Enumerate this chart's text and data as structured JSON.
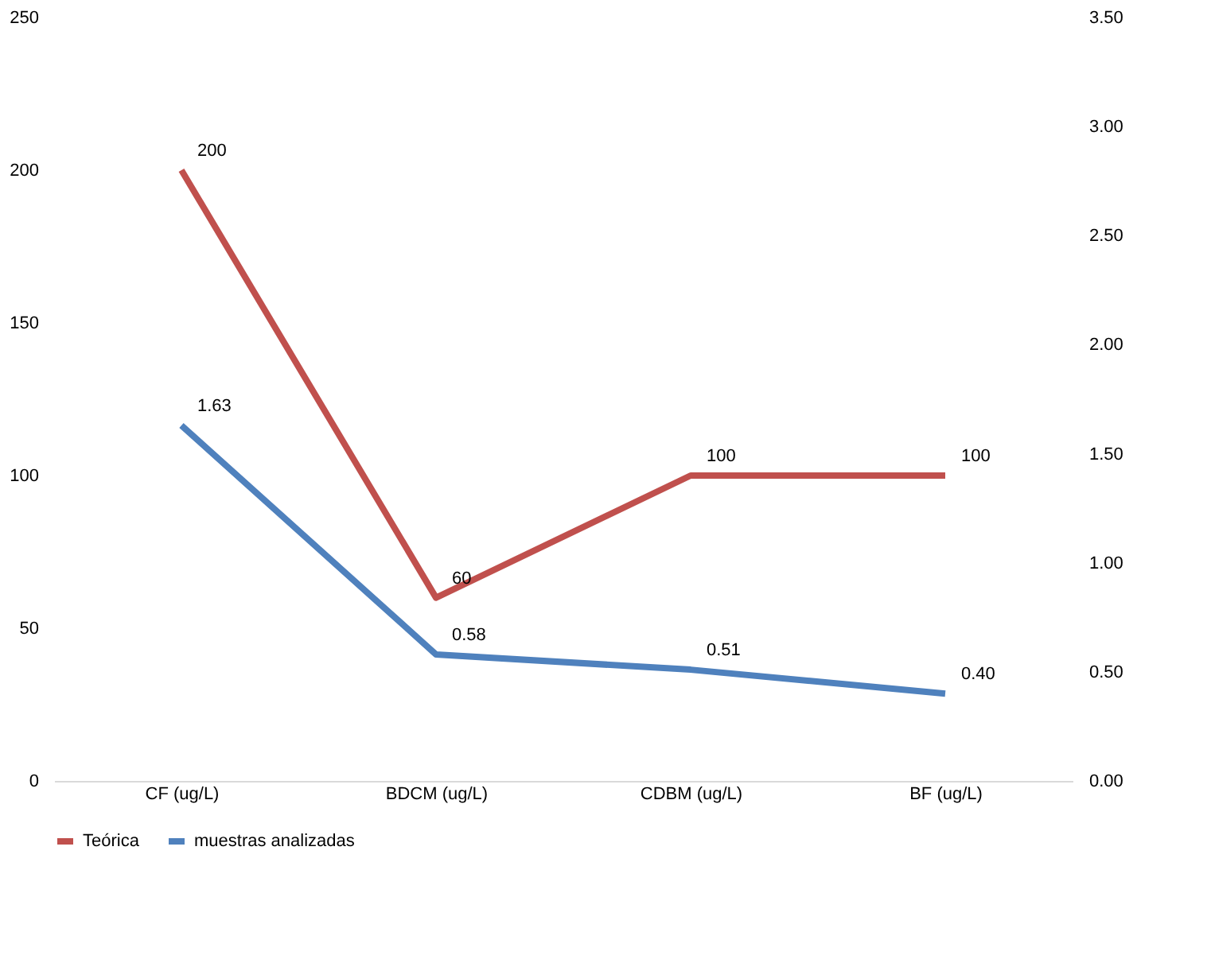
{
  "chart_data": {
    "type": "line",
    "categories": [
      "CF (ug/L)",
      "BDCM  (ug/L)",
      "CDBM  (ug/L)",
      "BF  (ug/L)"
    ],
    "series": [
      {
        "name": "Teórica",
        "color": "#c0504d",
        "values": [
          200,
          60,
          100,
          100
        ],
        "value_labels": [
          "200",
          "60",
          "100",
          "100"
        ]
      },
      {
        "name": "muestras analizadas",
        "color": "#4f81bd",
        "values": [
          1.63,
          0.58,
          0.51,
          0.4
        ],
        "axis": "y2",
        "value_labels": [
          "1.63",
          "0.58",
          "0.51",
          "0.40"
        ]
      }
    ],
    "ylim": [
      0,
      250
    ],
    "yticks": [
      0,
      50,
      100,
      150,
      200,
      250
    ],
    "y2lim": [
      0,
      3.5
    ],
    "y2ticks": [
      {
        "value": 0,
        "label": "0.00"
      },
      {
        "value": 0.5,
        "label": "0.50"
      },
      {
        "value": 1,
        "label": "1.00"
      },
      {
        "value": 1.5,
        "label": "1.50"
      },
      {
        "value": 2,
        "label": "2.00"
      },
      {
        "value": 2.5,
        "label": "2.50"
      },
      {
        "value": 3,
        "label": "3.00"
      },
      {
        "value": 3.5,
        "label": "3.50"
      }
    ],
    "legend": "bottom",
    "grid": false,
    "marker": "none",
    "line_style": "solid"
  }
}
